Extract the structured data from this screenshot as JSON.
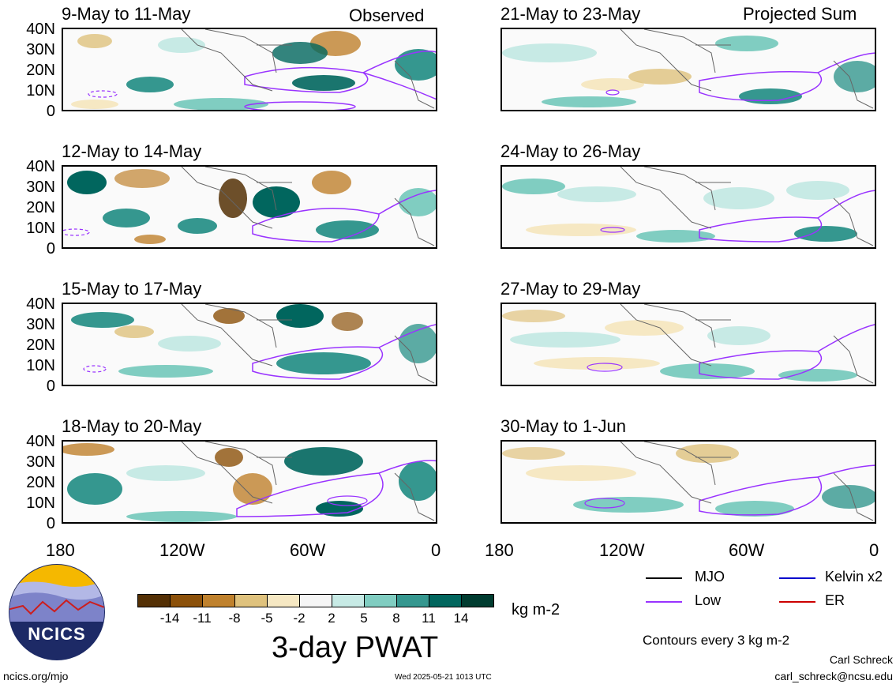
{
  "header": {
    "observed_label": "Observed",
    "projected_label": "Projected Sum"
  },
  "panels": [
    {
      "title": "9-May to 11-May"
    },
    {
      "title": "21-May to 23-May"
    },
    {
      "title": "12-May to 14-May"
    },
    {
      "title": "24-May to 26-May"
    },
    {
      "title": "15-May to 17-May"
    },
    {
      "title": "27-May to 29-May"
    },
    {
      "title": "18-May to 20-May"
    },
    {
      "title": "30-May to 1-Jun"
    }
  ],
  "y_axis_labels": [
    "40N",
    "30N",
    "20N",
    "10N",
    "0"
  ],
  "x_axis_labels": [
    "180",
    "120W",
    "60W",
    "0"
  ],
  "colorbar": {
    "tick_labels": [
      "-14",
      "-11",
      "-8",
      "-5",
      "-2",
      "2",
      "5",
      "8",
      "11",
      "14"
    ],
    "colors": [
      "#543005",
      "#8c510a",
      "#bf812d",
      "#dfc27d",
      "#f6e8c3",
      "#f5f5f5",
      "#c7eae5",
      "#80cdc1",
      "#35978f",
      "#01665e",
      "#003c30"
    ],
    "units": "kg m-2"
  },
  "title": "3-day PWAT",
  "legend": {
    "mjo": {
      "label": "MJO",
      "color": "#000000"
    },
    "kelvin": {
      "label": "Kelvin x2",
      "color": "#0000cc"
    },
    "low": {
      "label": "Low",
      "color": "#9933ff"
    },
    "er": {
      "label": "ER",
      "color": "#cc0000"
    }
  },
  "contour_note": "Contours every 3 kg m-2",
  "logo_text": "NCICS",
  "footer": {
    "url": "ncics.org/mjo",
    "timestamp": "Wed 2025-05-21 1013 UTC",
    "author": "Carl Schreck",
    "email": "carl_schreck@ncsu.edu"
  }
}
